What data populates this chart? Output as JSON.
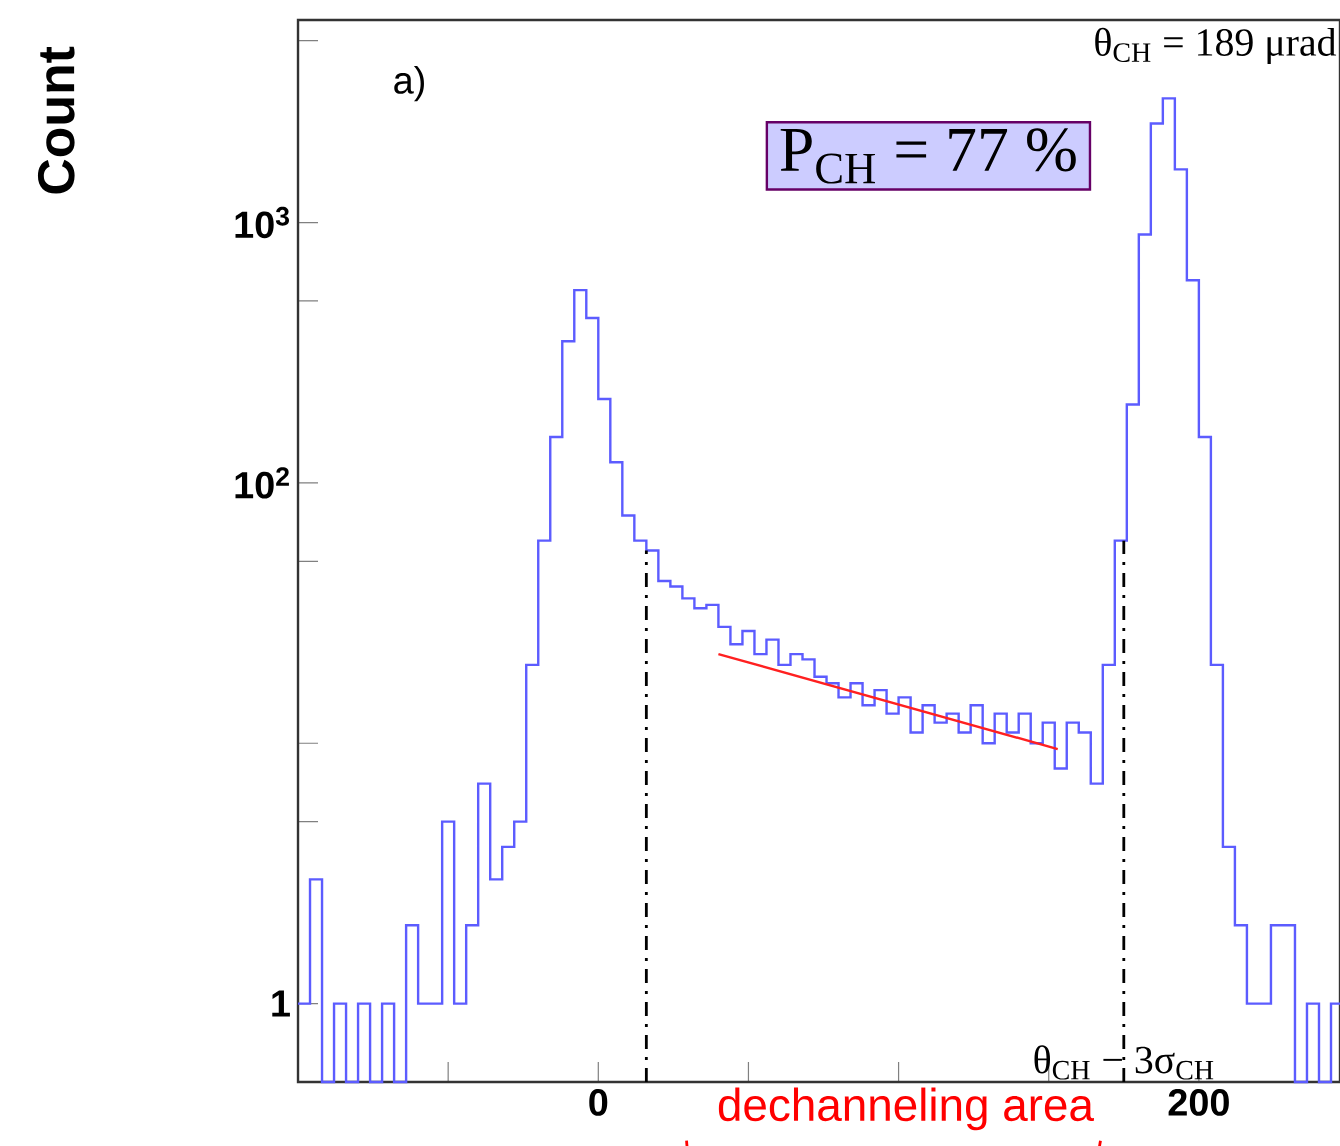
{
  "chart_data": {
    "type": "histogram",
    "ylabel": "Count",
    "log": "y",
    "color": "#5c5cff",
    "bins": [
      -100,
      -96,
      -92,
      -88,
      -84,
      -80,
      -76,
      -72,
      -68,
      -64,
      -60,
      -56,
      -52,
      -48,
      -44,
      -40,
      -36,
      -32,
      -28,
      -24,
      -20,
      -16,
      -12,
      -8,
      -4,
      0,
      4,
      8,
      12,
      16,
      20,
      24,
      28,
      32,
      36,
      40,
      44,
      48,
      52,
      56,
      60,
      64,
      68,
      72,
      76,
      80,
      84,
      88,
      92,
      96,
      100,
      104,
      108,
      112,
      116,
      120,
      124,
      128,
      132,
      136,
      140,
      144,
      148,
      152,
      156,
      160,
      164,
      168,
      172,
      176,
      180,
      184,
      188,
      192,
      196,
      200,
      204,
      208,
      212,
      216,
      220,
      224,
      228,
      232,
      236,
      240,
      244,
      248
    ],
    "values": [
      1,
      3,
      null,
      1,
      null,
      1,
      null,
      1,
      null,
      2,
      1,
      1,
      5,
      1,
      2,
      7,
      3,
      4,
      5,
      20,
      60,
      150,
      350,
      550,
      430,
      210,
      120,
      75,
      60,
      55,
      42,
      40,
      36,
      33,
      34,
      28,
      24,
      27,
      22,
      25,
      20,
      22,
      21,
      18,
      17,
      15,
      17,
      14,
      16,
      13,
      15,
      11,
      14,
      12,
      13,
      11,
      14,
      10,
      13,
      11,
      13,
      10,
      12,
      8,
      12,
      11,
      7,
      20,
      60,
      200,
      900,
      2400,
      3000,
      1600,
      600,
      150,
      20,
      4,
      2,
      1,
      1,
      2,
      2,
      null,
      1,
      null,
      1
    ],
    "series": [
      {
        "type": "line",
        "color": "#ff2020",
        "x": [
          40,
          153
        ],
        "values": [
          22,
          9.5
        ]
      }
    ],
    "xlim": [
      -100,
      247
    ],
    "ylim": [
      0.5,
      6000
    ],
    "xticks": [
      {
        "value": -50,
        "label": null
      },
      0,
      {
        "value": 50,
        "label": null
      },
      {
        "value": 100,
        "label": null
      },
      {
        "value": 150,
        "label": null
      },
      200
    ],
    "yticks": [
      {
        "value": 1,
        "label": "1"
      },
      {
        "value": 5,
        "label": null
      },
      {
        "value": 10,
        "label": null
      },
      {
        "value": 50,
        "label": null
      },
      {
        "value": 100,
        "label": "10$^{2}$"
      },
      {
        "value": 500,
        "label": null
      },
      {
        "value": 1000,
        "label": "10$^{3}$"
      },
      {
        "value": 5000,
        "label": null
      }
    ],
    "ref_lines": [
      {
        "axis": "x",
        "value": 16,
        "color": "#000000"
      },
      {
        "axis": "x",
        "value": 175,
        "color": "#000000",
        "label": "θ$_{CH}$ − 3σ$_{CH}$"
      }
    ],
    "annotations": [
      "a)",
      "P$_{CH}$ = 77 %",
      "θ$_{CH}$ = 189 μrad",
      "dechanneling area"
    ]
  }
}
